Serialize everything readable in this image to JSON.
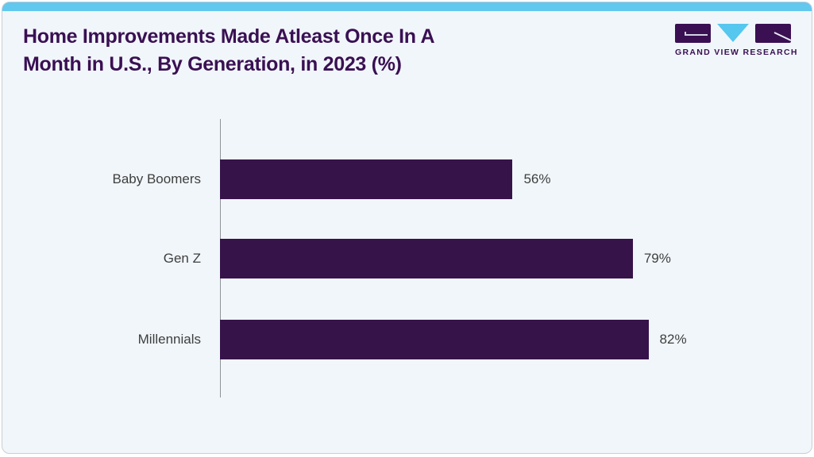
{
  "header": {
    "title": "Home Improvements Made Atleast Once In A\nMonth in U.S., By Generation, in 2023 (%)"
  },
  "logo": {
    "brand_name": "GRAND VIEW RESEARCH"
  },
  "colors": {
    "accent_bar": "#62c8ee",
    "bar_fill": "#361349",
    "title_text": "#3a1053",
    "label_text": "#3e3e3e",
    "card_background": "#f1f6fa",
    "axis_line": "#8f9499",
    "card_border": "#c9ced3",
    "logo_triangle": "#56c7ee"
  },
  "chart_data": {
    "type": "bar",
    "orientation": "horizontal",
    "title": "Home Improvements Made Atleast Once In A Month in U.S., By Generation, in 2023 (%)",
    "categories": [
      "Baby Boomers",
      "Gen Z",
      "Millennials"
    ],
    "values": [
      56,
      79,
      82
    ],
    "value_labels": [
      "56%",
      "79%",
      "82%"
    ],
    "unit": "%",
    "xlim": [
      0,
      100
    ],
    "grid": false,
    "legend": false,
    "bar_color": "#361349",
    "year": "2023"
  }
}
